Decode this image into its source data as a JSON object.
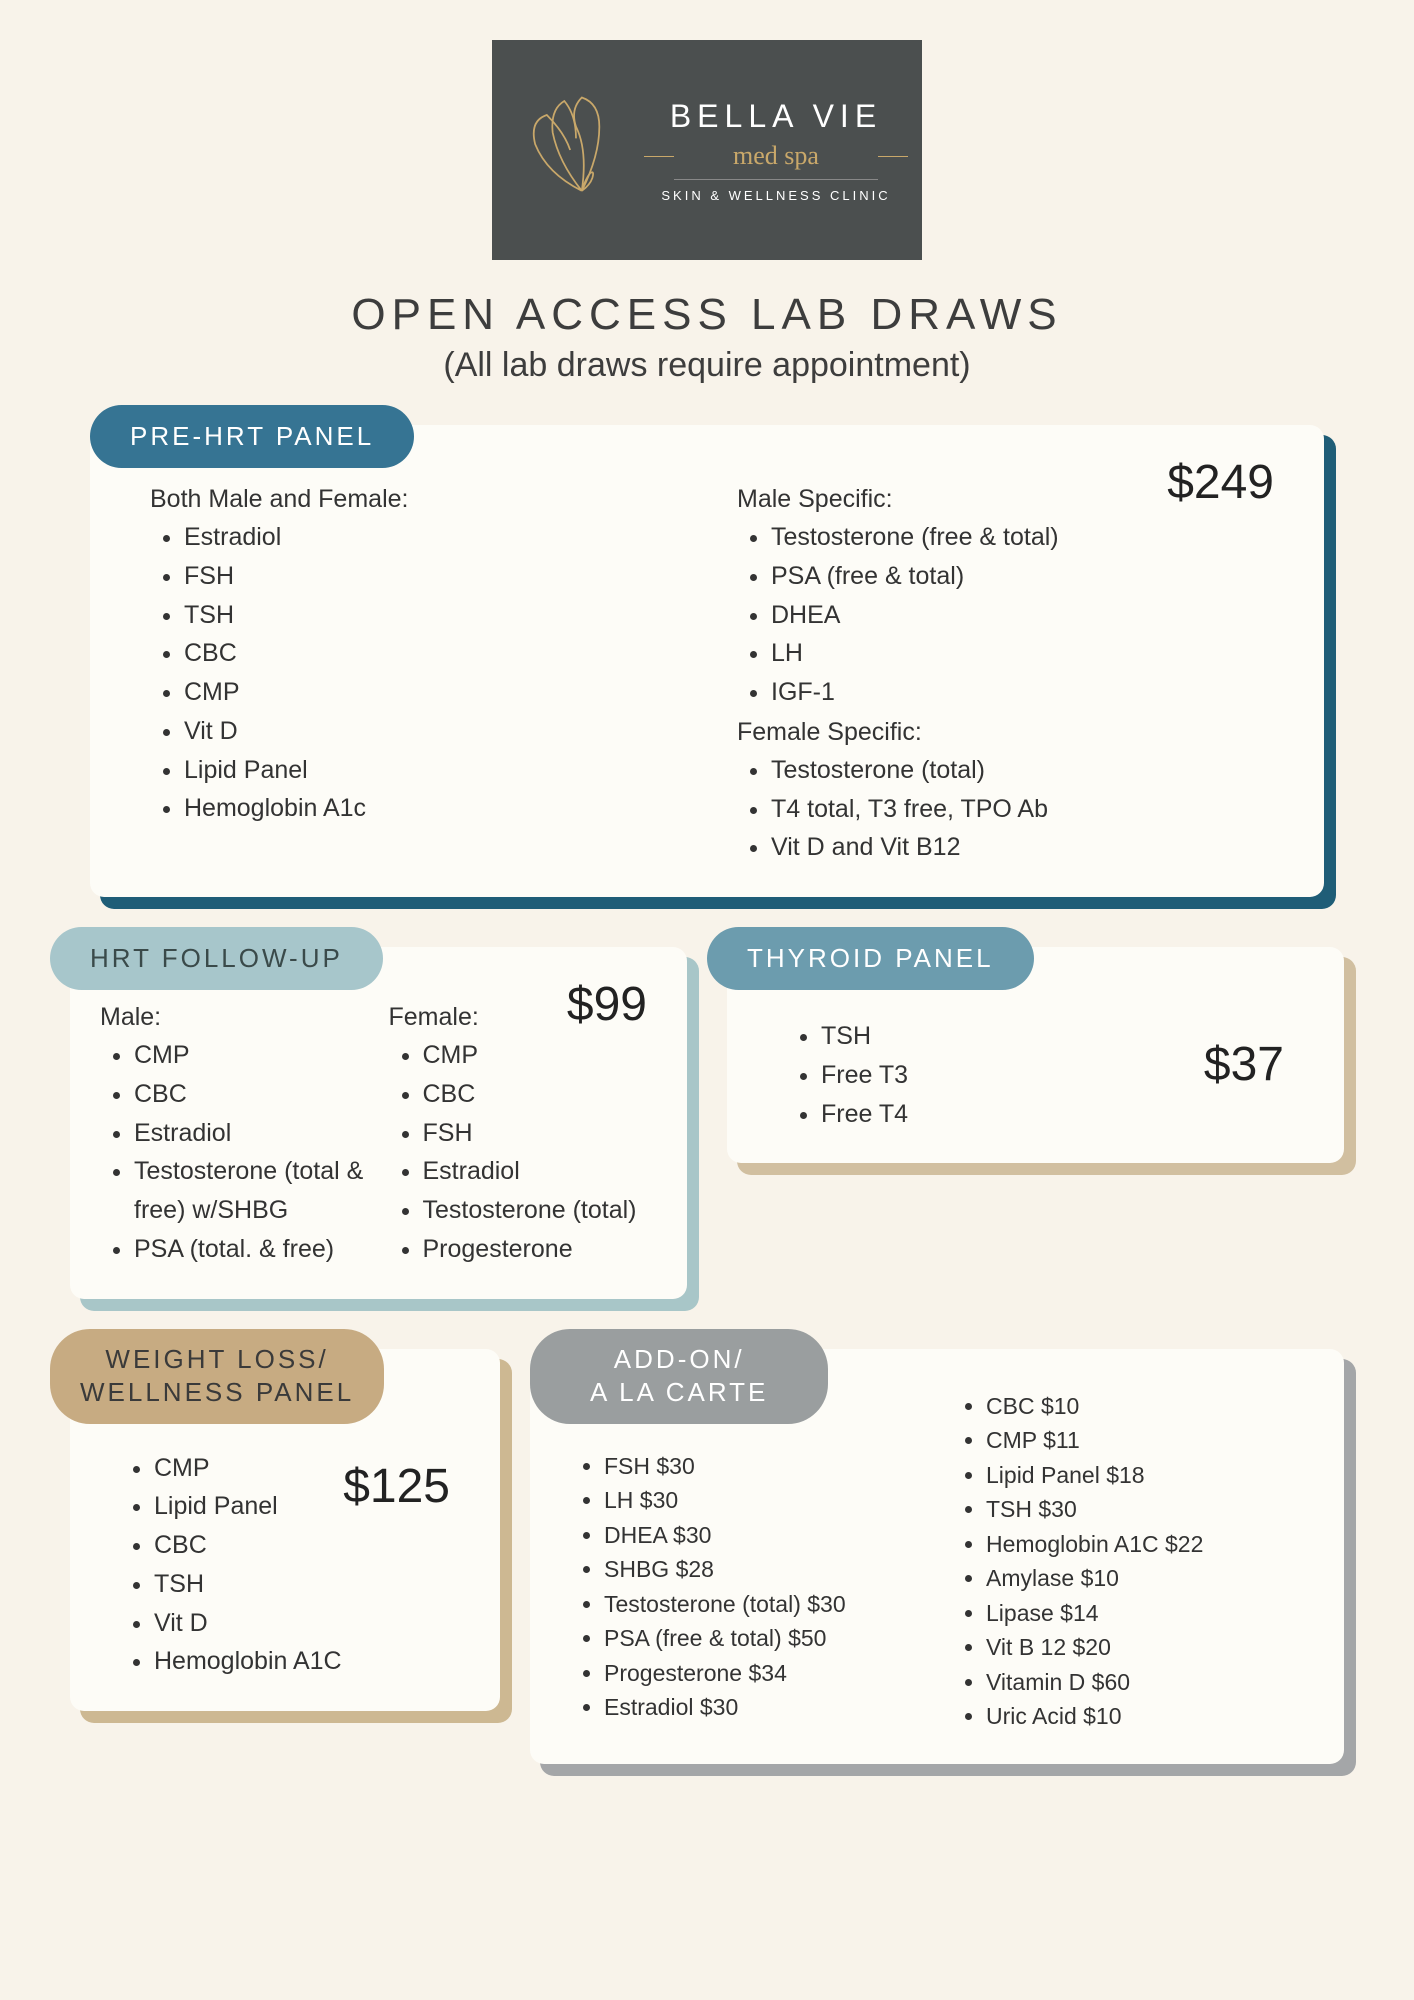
{
  "logo": {
    "brand": "BELLA VIE",
    "script": "med spa",
    "sub": "SKIN & WELLNESS CLINIC",
    "bg_color": "#4b4f4f",
    "accent_color": "#c9a86a"
  },
  "heading": {
    "title": "OPEN ACCESS LAB DRAWS",
    "subtitle": "(All lab draws require appointment)"
  },
  "panels": {
    "pre_hrt": {
      "label": "PRE-HRT PANEL",
      "pill_color": "#367493",
      "shadow_color": "#1f5d77",
      "price": "$249",
      "both_label": "Both Male and Female:",
      "both_items": [
        "Estradiol",
        "FSH",
        "TSH",
        "CBC",
        "CMP",
        "Vit D",
        "Lipid Panel",
        "Hemoglobin A1c"
      ],
      "male_label": "Male Specific:",
      "male_items": [
        "Testosterone (free & total)",
        "PSA (free & total)",
        "DHEA",
        "LH",
        "IGF-1"
      ],
      "female_label": "Female Specific:",
      "female_items": [
        "Testosterone (total)",
        "T4 total, T3 free, TPO Ab",
        "Vit D and Vit B12"
      ]
    },
    "hrt_followup": {
      "label": "HRT FOLLOW-UP",
      "pill_color": "#a7c6cb",
      "shadow_color": "#a8c6c8",
      "price": "$99",
      "male_label": "Male:",
      "male_items": [
        "CMP",
        "CBC",
        "Estradiol",
        "Testosterone (total & free) w/SHBG",
        "PSA (total. & free)"
      ],
      "female_label": "Female:",
      "female_items": [
        "CMP",
        "CBC",
        "FSH",
        "Estradiol",
        "Testosterone (total)",
        "Progesterone"
      ]
    },
    "thyroid": {
      "label": "THYROID PANEL",
      "pill_color": "#6c9cae",
      "shadow_color": "#d1bfa0",
      "price": "$37",
      "items": [
        "TSH",
        "Free T3",
        "Free T4"
      ]
    },
    "weight_loss": {
      "label_line1": "WEIGHT LOSS/",
      "label_line2": "WELLNESS PANEL",
      "pill_color": "#c7ab82",
      "shadow_color": "#cdb892",
      "price": "$125",
      "items": [
        "CMP",
        "Lipid Panel",
        "CBC",
        "TSH",
        "Vit D",
        "Hemoglobin A1C"
      ]
    },
    "addon": {
      "label_line1": "ADD-ON/",
      "label_line2": "A LA CARTE",
      "pill_color": "#9a9e9f",
      "shadow_color": "#a4a6a8",
      "col1": [
        "FSH  $30",
        "LH  $30",
        "DHEA $30",
        "SHBG $28",
        "Testosterone (total)  $30",
        "PSA (free & total)  $50",
        "Progesterone $34",
        "Estradiol  $30"
      ],
      "col2": [
        "CBC $10",
        "CMP  $11",
        "Lipid Panel  $18",
        "TSH $30",
        "Hemoglobin A1C $22",
        "Amylase  $10",
        "Lipase  $14",
        "Vit B 12  $20",
        "Vitamin D  $60",
        "Uric Acid  $10"
      ]
    }
  }
}
